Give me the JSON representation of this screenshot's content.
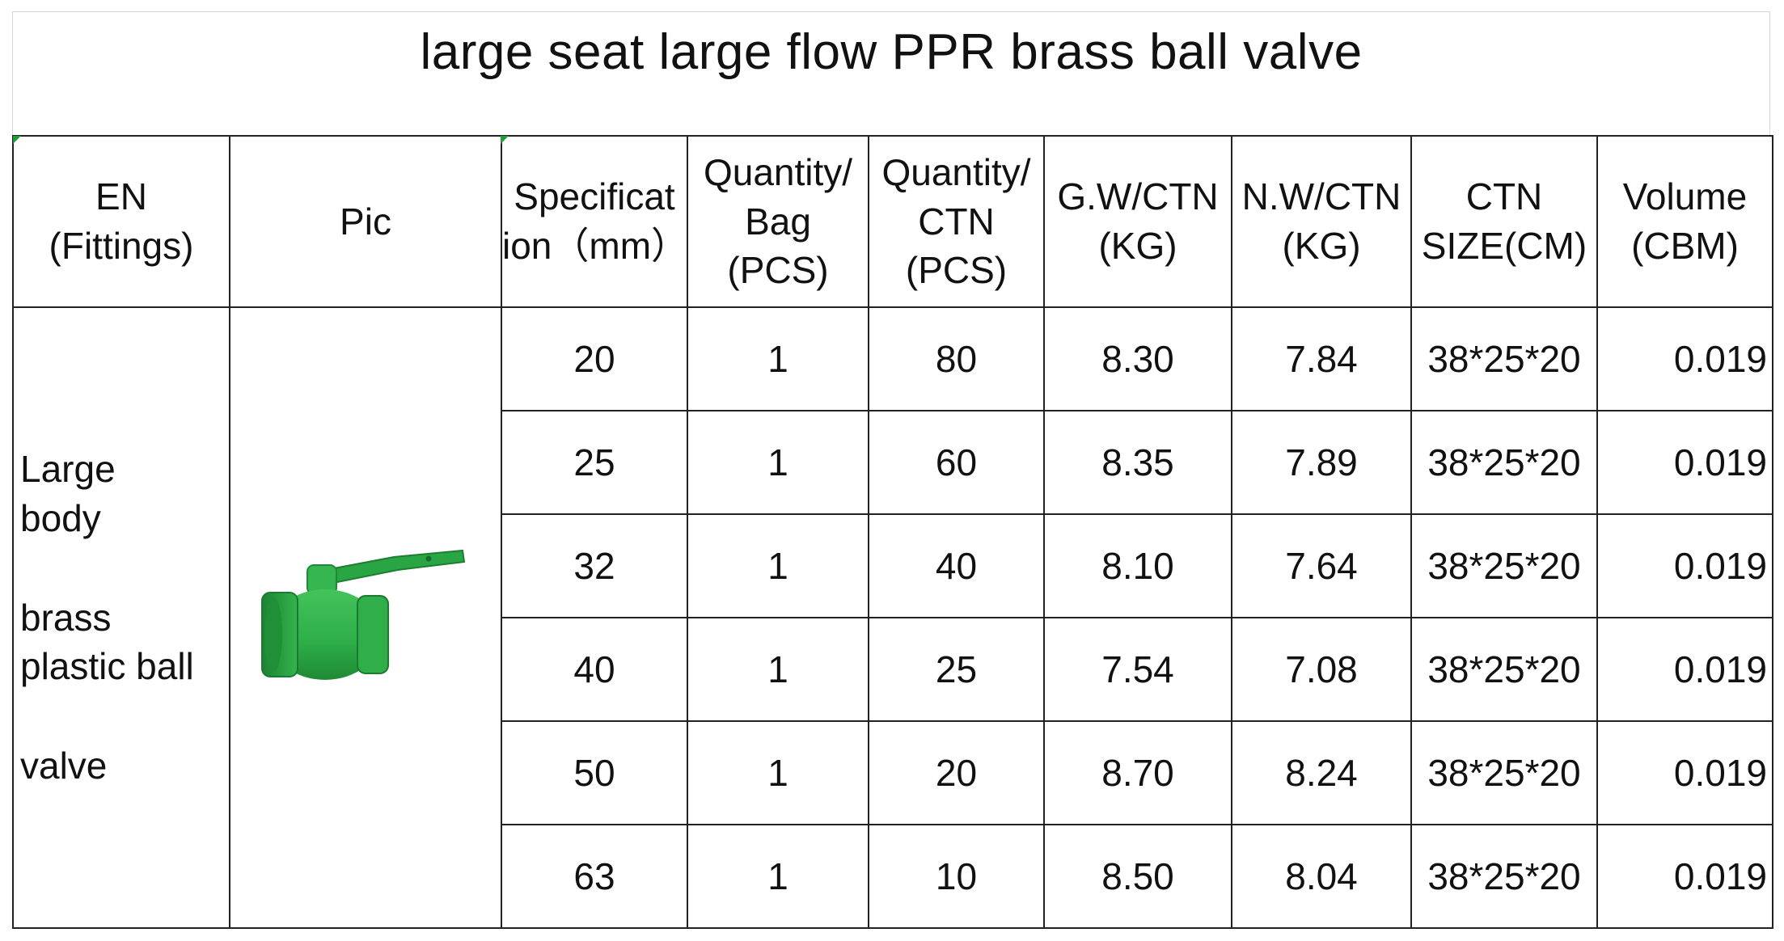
{
  "title": "large seat large flow PPR brass ball valve",
  "headers": {
    "en": [
      "EN",
      "(Fittings)"
    ],
    "pic": [
      "Pic"
    ],
    "spec": [
      "Specificat",
      "ion（mm）"
    ],
    "qty_bag": [
      "Quantity/",
      "Bag",
      "(PCS)"
    ],
    "qty_ctn": [
      "Quantity/",
      "CTN",
      "(PCS)"
    ],
    "gw": [
      "G.W/CTN",
      "(KG)"
    ],
    "nw": [
      "N.W/CTN",
      "(KG)"
    ],
    "ctn_size": [
      "CTN",
      "SIZE(CM)"
    ],
    "volume": [
      "Volume",
      "(CBM)"
    ]
  },
  "product_name_lines": [
    "Large",
    "body",
    "",
    "brass",
    "plastic ball",
    "",
    "valve"
  ],
  "product_image_icon": "green-ppr-ball-valve-icon",
  "colors": {
    "valve_green": "#2fb04a",
    "valve_dark": "#1f8a35",
    "border": "#222222"
  },
  "rows": [
    {
      "spec": "20",
      "qty_bag": "1",
      "qty_ctn": "80",
      "gw": "8.30",
      "nw": "7.84",
      "ctn_size": "38*25*20",
      "volume": "0.019"
    },
    {
      "spec": "25",
      "qty_bag": "1",
      "qty_ctn": "60",
      "gw": "8.35",
      "nw": "7.89",
      "ctn_size": "38*25*20",
      "volume": "0.019"
    },
    {
      "spec": "32",
      "qty_bag": "1",
      "qty_ctn": "40",
      "gw": "8.10",
      "nw": "7.64",
      "ctn_size": "38*25*20",
      "volume": "0.019"
    },
    {
      "spec": "40",
      "qty_bag": "1",
      "qty_ctn": "25",
      "gw": "7.54",
      "nw": "7.08",
      "ctn_size": "38*25*20",
      "volume": "0.019"
    },
    {
      "spec": "50",
      "qty_bag": "1",
      "qty_ctn": "20",
      "gw": "8.70",
      "nw": "8.24",
      "ctn_size": "38*25*20",
      "volume": "0.019"
    },
    {
      "spec": "63",
      "qty_bag": "1",
      "qty_ctn": "10",
      "gw": "8.50",
      "nw": "8.04",
      "ctn_size": "38*25*20",
      "volume": "0.019"
    }
  ]
}
